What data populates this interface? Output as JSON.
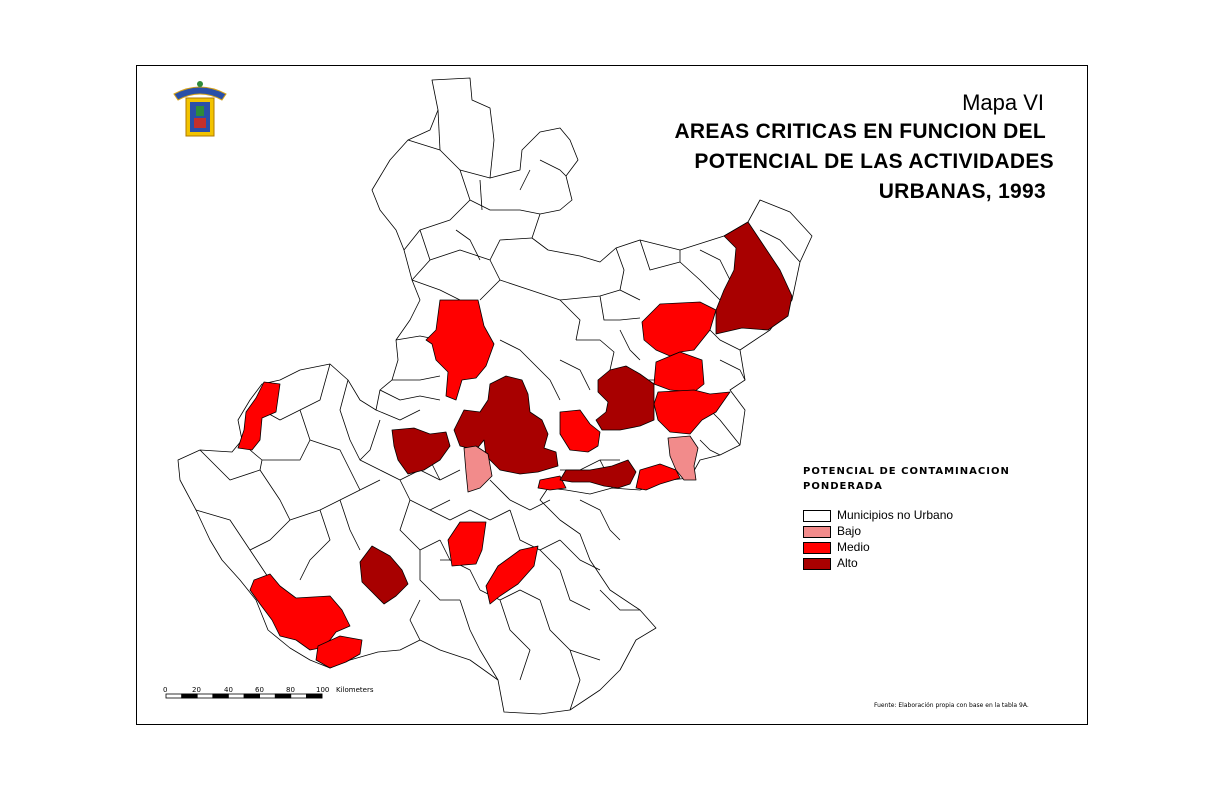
{
  "title": {
    "line1": "Mapa VI",
    "line2": "AREAS CRITICAS EN FUNCION DEL",
    "line3": "POTENCIAL DE LAS ACTIVIDADES",
    "line4": "URBANAS, 1993"
  },
  "legend": {
    "title_line1": "POTENCIAL DE CONTAMINACION",
    "title_line2": "PONDERADA",
    "items": [
      {
        "label": "Municipios no Urbano",
        "color": "#ffffff"
      },
      {
        "label": "Bajo",
        "color": "#f28b8b"
      },
      {
        "label": "Medio",
        "color": "#ff0000"
      },
      {
        "label": "Alto",
        "color": "#a80000"
      }
    ]
  },
  "scale_bar": {
    "ticks": [
      "0",
      "20",
      "40",
      "60",
      "80",
      "100"
    ],
    "unit": "Kilometers"
  },
  "source": "Fuente: Elaboración propia con base en la tabla 9A.",
  "colors": {
    "none": "#ffffff",
    "bajo": "#f28b8b",
    "medio": "#ff0000",
    "alto": "#a80000",
    "stroke": "#000000"
  }
}
